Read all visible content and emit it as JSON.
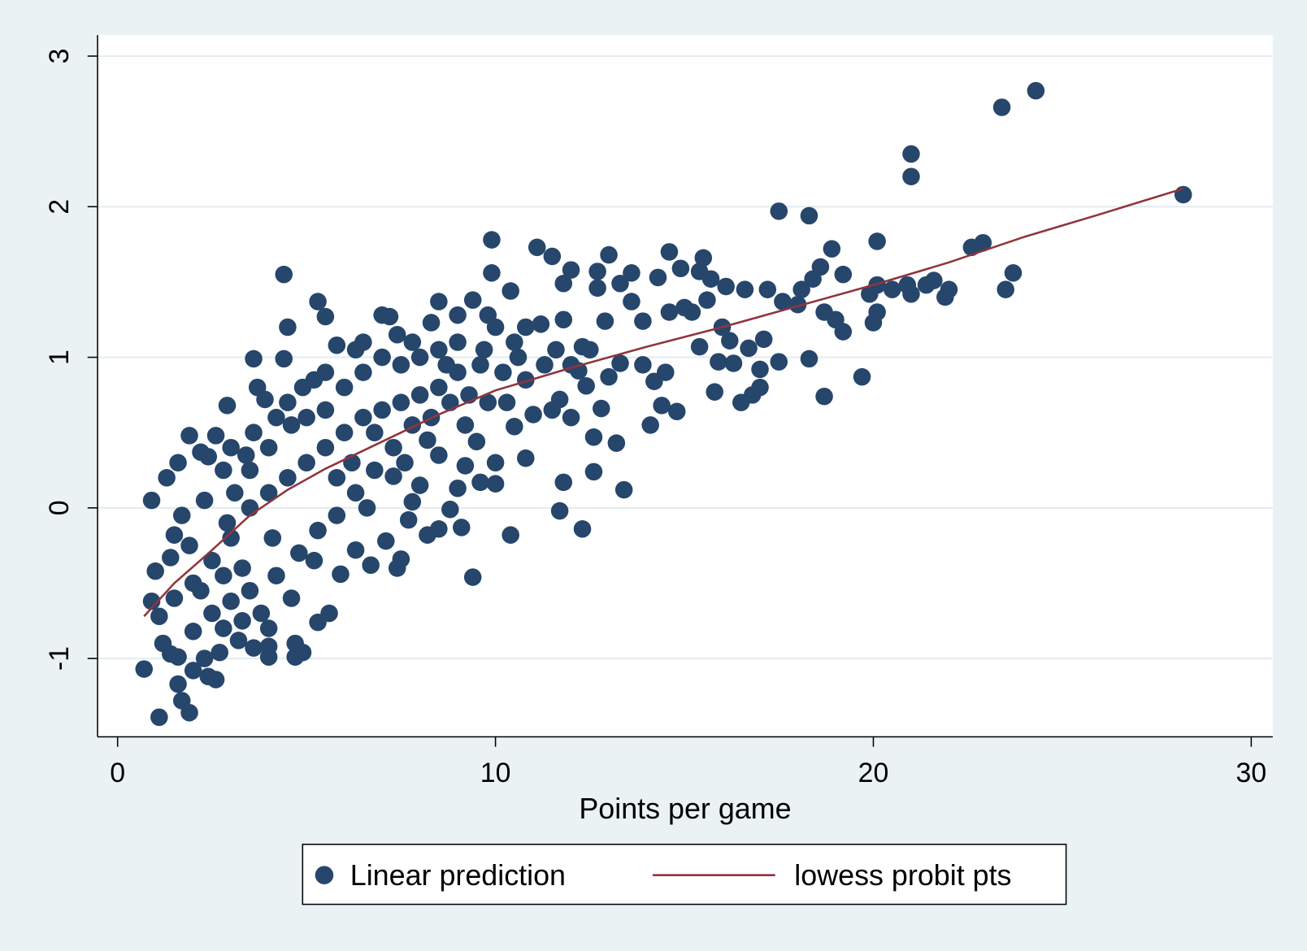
{
  "chart_data": {
    "type": "scatter",
    "x_label": "Points per game",
    "xlim": [
      -0.53,
      30.57
    ],
    "ylim": [
      -1.52,
      3.14
    ],
    "xticks": [
      0,
      10,
      20,
      30
    ],
    "yticks": [
      -1,
      0,
      1,
      2,
      3
    ],
    "grid": true,
    "legend": "bottom",
    "series": [
      {
        "name": "Linear prediction",
        "type": "scatter",
        "color": "#26466b",
        "x": [
          0.7,
          1.1,
          1.9,
          1.7,
          1.6,
          0.9,
          1.3,
          4.4,
          5.3,
          5.5,
          4.5,
          3.6,
          4.4,
          2.9,
          9.9,
          9.9,
          10.4,
          11.1,
          11.5,
          12.0,
          11.8,
          9.4,
          10.4,
          11.7,
          12.3,
          11.8,
          13.4,
          12.6,
          13.2,
          13.0,
          14.6,
          15.5,
          13.0,
          17.5,
          18.3,
          18.9,
          20.1,
          21.0,
          21.0,
          23.4,
          24.3,
          28.2,
          22.6,
          22.9,
          23.7,
          23.5,
          19.7,
          18.7,
          18.3,
          17.5,
          16.5,
          16.8,
          17.0,
          17.0,
          15.8,
          14.8,
          14.1,
          14.4,
          14.2,
          14.5,
          15.9,
          16.3,
          20.0,
          20.1,
          19.2,
          19.0,
          19.2,
          18.6,
          18.1,
          18.0,
          18.7,
          18.4,
          19.9,
          20.1,
          20.5,
          20.9,
          21.0,
          21.4,
          21.6,
          21.9,
          22.0,
          17.6,
          17.2,
          16.6,
          16.1,
          15.7,
          15.4,
          14.9,
          14.3,
          13.6,
          13.3,
          12.7,
          12.7,
          17.1,
          16.7,
          16.2,
          16.0,
          15.4,
          14.6,
          15.0,
          15.2,
          15.6,
          13.9,
          13.6,
          12.9,
          12.3,
          13.3,
          13.9,
          12.4,
          12.2,
          11.7,
          12.0,
          11.5,
          12.8,
          12.6,
          11.0,
          10.5,
          10.8,
          10.0,
          10.0,
          9.5,
          9.6,
          9.0,
          9.2,
          8.8,
          9.1,
          8.5,
          8.2,
          7.8,
          7.5,
          7.4,
          6.7,
          7.7,
          7.3,
          8.0,
          8.5,
          7.1,
          6.3,
          5.9,
          5.6,
          5.3,
          4.7,
          4.7,
          4.9,
          4.0,
          4.0,
          4.0,
          3.6,
          3.2,
          2.7,
          2.6,
          2.4,
          2.3,
          2.0,
          1.6,
          1.4,
          1.2,
          1.1,
          0.9,
          1.0,
          1.4,
          1.5,
          1.6,
          1.9,
          2.2,
          2.6,
          2.4,
          2.8,
          1.7,
          1.9,
          2.2,
          2.5,
          2.0,
          3.0,
          3.3,
          2.9,
          3.1,
          3.4,
          3.6,
          3.7,
          3.9,
          4.2,
          4.6,
          4.9,
          5.2,
          5.5,
          5.8,
          6.3,
          6.5,
          7.0,
          7.2,
          7.4,
          7.8,
          8.3,
          8.5,
          9.0,
          9.4,
          9.8,
          10.0,
          10.5,
          10.8,
          11.2,
          11.8,
          12.5,
          11.3,
          10.8,
          10.2,
          9.6,
          9.0,
          8.5,
          8.0,
          7.5,
          7.0,
          6.5,
          6.0,
          5.5,
          5.0,
          4.5,
          4.0,
          3.5,
          3.0,
          2.5,
          2.0,
          1.5,
          2.3,
          2.8,
          3.5,
          4.2,
          4.8,
          5.3,
          5.8,
          6.3,
          6.8,
          7.3,
          7.8,
          8.3,
          8.8,
          9.3,
          9.8,
          10.3,
          6.0,
          6.5,
          7.0,
          7.5,
          8.0,
          8.5,
          9.0,
          5.5,
          5.0,
          4.5,
          4.0,
          3.5,
          3.0,
          6.2,
          6.6,
          5.2,
          4.6,
          4.1,
          3.8,
          3.3,
          2.8,
          5.8,
          6.8,
          7.6,
          8.2,
          9.2,
          8.7,
          9.7,
          10.6,
          11.6,
          12.0
        ],
        "values": [
          -1.07,
          -1.39,
          -1.36,
          -1.28,
          -1.17,
          0.05,
          0.2,
          1.55,
          1.37,
          1.27,
          1.2,
          0.99,
          0.99,
          0.68,
          1.78,
          1.56,
          1.44,
          1.73,
          1.67,
          1.58,
          1.49,
          -0.46,
          -0.18,
          -0.02,
          -0.14,
          0.17,
          0.12,
          0.24,
          0.43,
          0.87,
          1.7,
          1.66,
          1.68,
          1.97,
          1.94,
          1.72,
          1.77,
          2.35,
          2.2,
          2.66,
          2.77,
          2.08,
          1.73,
          1.76,
          1.56,
          1.45,
          0.87,
          0.74,
          0.99,
          0.97,
          0.7,
          0.75,
          0.8,
          0.92,
          0.77,
          0.64,
          0.55,
          0.68,
          0.84,
          0.9,
          0.97,
          0.96,
          1.23,
          1.3,
          1.17,
          1.25,
          1.55,
          1.6,
          1.45,
          1.35,
          1.3,
          1.52,
          1.42,
          1.48,
          1.45,
          1.48,
          1.42,
          1.48,
          1.51,
          1.4,
          1.45,
          1.37,
          1.45,
          1.45,
          1.47,
          1.52,
          1.57,
          1.59,
          1.53,
          1.56,
          1.49,
          1.57,
          1.46,
          1.12,
          1.06,
          1.11,
          1.2,
          1.07,
          1.3,
          1.33,
          1.3,
          1.38,
          1.24,
          1.37,
          1.24,
          1.07,
          0.96,
          0.95,
          0.81,
          0.91,
          0.72,
          0.6,
          0.65,
          0.66,
          0.47,
          0.62,
          0.54,
          0.33,
          0.16,
          0.3,
          0.44,
          0.17,
          0.13,
          0.28,
          -0.01,
          -0.13,
          -0.14,
          -0.18,
          0.04,
          -0.34,
          -0.4,
          -0.38,
          -0.08,
          0.21,
          0.15,
          0.35,
          -0.22,
          -0.28,
          -0.44,
          -0.7,
          -0.76,
          -0.99,
          -0.9,
          -0.96,
          -0.99,
          -0.92,
          -0.8,
          -0.93,
          -0.88,
          -0.96,
          -1.14,
          -1.12,
          -1.0,
          -1.08,
          -0.99,
          -0.97,
          -0.9,
          -0.72,
          -0.62,
          -0.42,
          -0.33,
          -0.18,
          0.3,
          0.48,
          0.37,
          0.48,
          0.34,
          0.25,
          -0.05,
          -0.25,
          -0.55,
          -0.7,
          -0.82,
          -0.62,
          -0.4,
          -0.1,
          0.1,
          0.35,
          0.5,
          0.8,
          0.72,
          0.6,
          0.55,
          0.8,
          0.85,
          0.9,
          1.08,
          1.05,
          1.1,
          1.28,
          1.27,
          1.15,
          1.1,
          1.23,
          1.37,
          1.28,
          1.38,
          1.28,
          1.2,
          1.1,
          1.2,
          1.22,
          1.25,
          1.05,
          0.95,
          0.85,
          0.9,
          0.95,
          0.9,
          0.8,
          0.75,
          0.7,
          0.65,
          0.6,
          0.5,
          0.4,
          0.3,
          0.2,
          0.1,
          0.0,
          -0.2,
          -0.35,
          -0.5,
          -0.6,
          0.05,
          -0.45,
          -0.55,
          -0.45,
          -0.3,
          -0.15,
          -0.05,
          0.1,
          0.25,
          0.4,
          0.55,
          0.6,
          0.7,
          0.75,
          0.7,
          0.7,
          0.8,
          0.9,
          1.0,
          0.95,
          1.0,
          1.05,
          1.1,
          0.65,
          0.6,
          0.7,
          0.4,
          0.25,
          0.4,
          0.3,
          0.0,
          -0.35,
          -0.6,
          -0.2,
          -0.7,
          -0.75,
          -0.8,
          0.2,
          0.5,
          0.3,
          0.45,
          0.55,
          0.95,
          1.05,
          1.0,
          1.05,
          0.95
        ]
      },
      {
        "name": "lowess probit pts",
        "type": "line",
        "color": "#90353b",
        "x": [
          0.7,
          1.5,
          2.5,
          3.5,
          4.5,
          5.5,
          6.5,
          7.5,
          8.5,
          10,
          12,
          14,
          16,
          18,
          20,
          22,
          24,
          26,
          28.2
        ],
        "values": [
          -0.72,
          -0.5,
          -0.28,
          -0.05,
          0.12,
          0.26,
          0.38,
          0.5,
          0.62,
          0.78,
          0.93,
          1.07,
          1.2,
          1.34,
          1.48,
          1.63,
          1.8,
          1.95,
          2.12
        ]
      }
    ]
  }
}
